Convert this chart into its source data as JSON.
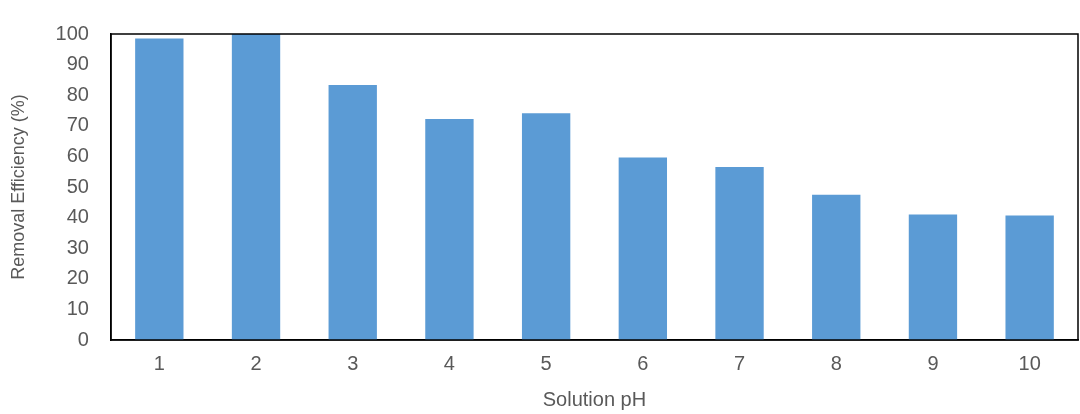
{
  "chart_data": {
    "type": "bar",
    "xlabel": "Solution pH",
    "ylabel": "Removal Efficiency (%)",
    "categories": [
      "1",
      "2",
      "3",
      "4",
      "5",
      "6",
      "7",
      "8",
      "9",
      "10"
    ],
    "values": [
      98.5,
      100,
      83.3,
      72.2,
      74.1,
      59.6,
      56.5,
      47.5,
      41,
      40.7
    ],
    "color": "#5b9bd5",
    "ylim": [
      0,
      100
    ],
    "yticks": [
      0,
      10,
      20,
      30,
      40,
      50,
      60,
      70,
      80,
      90,
      100
    ],
    "grid": false,
    "legend": false
  }
}
